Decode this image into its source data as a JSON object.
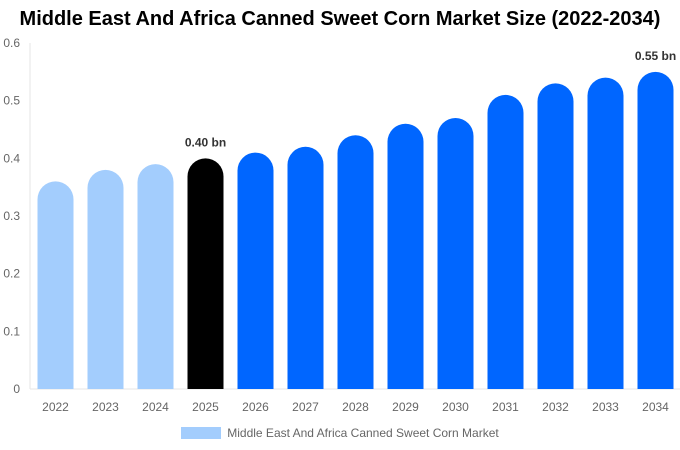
{
  "chart_data": {
    "type": "bar",
    "title": "Middle East And Africa Canned Sweet Corn Market Size (2022-2034)",
    "categories": [
      "2022",
      "2023",
      "2024",
      "2025",
      "2026",
      "2027",
      "2028",
      "2029",
      "2030",
      "2031",
      "2032",
      "2033",
      "2034"
    ],
    "values": [
      0.36,
      0.38,
      0.39,
      0.4,
      0.41,
      0.42,
      0.44,
      0.46,
      0.47,
      0.51,
      0.53,
      0.54,
      0.55
    ],
    "colors": [
      "#a3cdfd",
      "#a3cdfd",
      "#a3cdfd",
      "#000000",
      "#0066ff",
      "#0066ff",
      "#0066ff",
      "#0066ff",
      "#0066ff",
      "#0066ff",
      "#0066ff",
      "#0066ff",
      "#0066ff"
    ],
    "data_labels": {
      "3": "0.40 bn",
      "12": "0.55 bn"
    },
    "yticks": [
      "0",
      "0.1",
      "0.2",
      "0.3",
      "0.4",
      "0.5",
      "0.6"
    ],
    "ylim": [
      0,
      0.6
    ],
    "xlabel": "",
    "ylabel": "",
    "legend": {
      "label": "Middle East And Africa Canned Sweet Corn Market",
      "color": "#a3cdfd",
      "position": "bottom"
    }
  }
}
